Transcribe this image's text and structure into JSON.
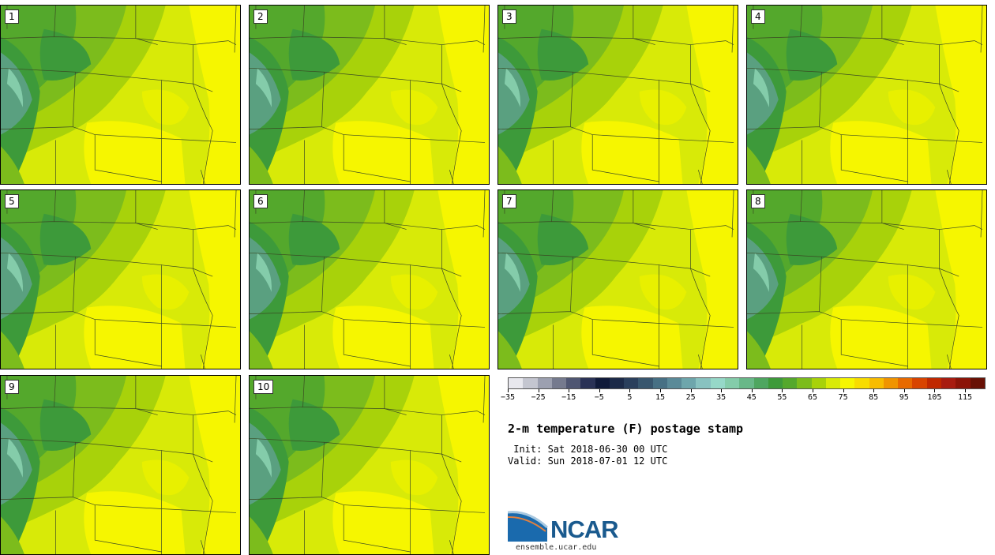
{
  "panels": [
    "1",
    "2",
    "3",
    "4",
    "5",
    "6",
    "7",
    "8",
    "9",
    "10"
  ],
  "colorbar": {
    "colors": [
      "#e8e8ee",
      "#c4c6d0",
      "#9ca0b0",
      "#757a8e",
      "#4f5672",
      "#2a3256",
      "#101a3a",
      "#1c2a48",
      "#2a3f5c",
      "#38566e",
      "#477084",
      "#5a8a98",
      "#6ea6ac",
      "#88c2c0",
      "#96d8c8",
      "#84ccaa",
      "#68b888",
      "#4ea660",
      "#3d9a3a",
      "#54a82c",
      "#7cbc1c",
      "#a8d20a",
      "#d8ea08",
      "#f6f600",
      "#f8dc00",
      "#f8bc00",
      "#f09400",
      "#e86a00",
      "#d84400",
      "#c02800",
      "#a81c10",
      "#8c1408",
      "#681004"
    ],
    "tick_labels": [
      "−35",
      "−25",
      "−15",
      "−5",
      "5",
      "15",
      "25",
      "35",
      "45",
      "55",
      "65",
      "75",
      "85",
      "95",
      "105",
      "115"
    ]
  },
  "title": "2-m temperature (F) postage stamp",
  "init_line": " Init: Sat 2018-06-30 00 UTC",
  "valid_line": "Valid: Sun 2018-07-01 12 UTC",
  "logo_text": "NCAR",
  "site": "ensemble.ucar.edu"
}
